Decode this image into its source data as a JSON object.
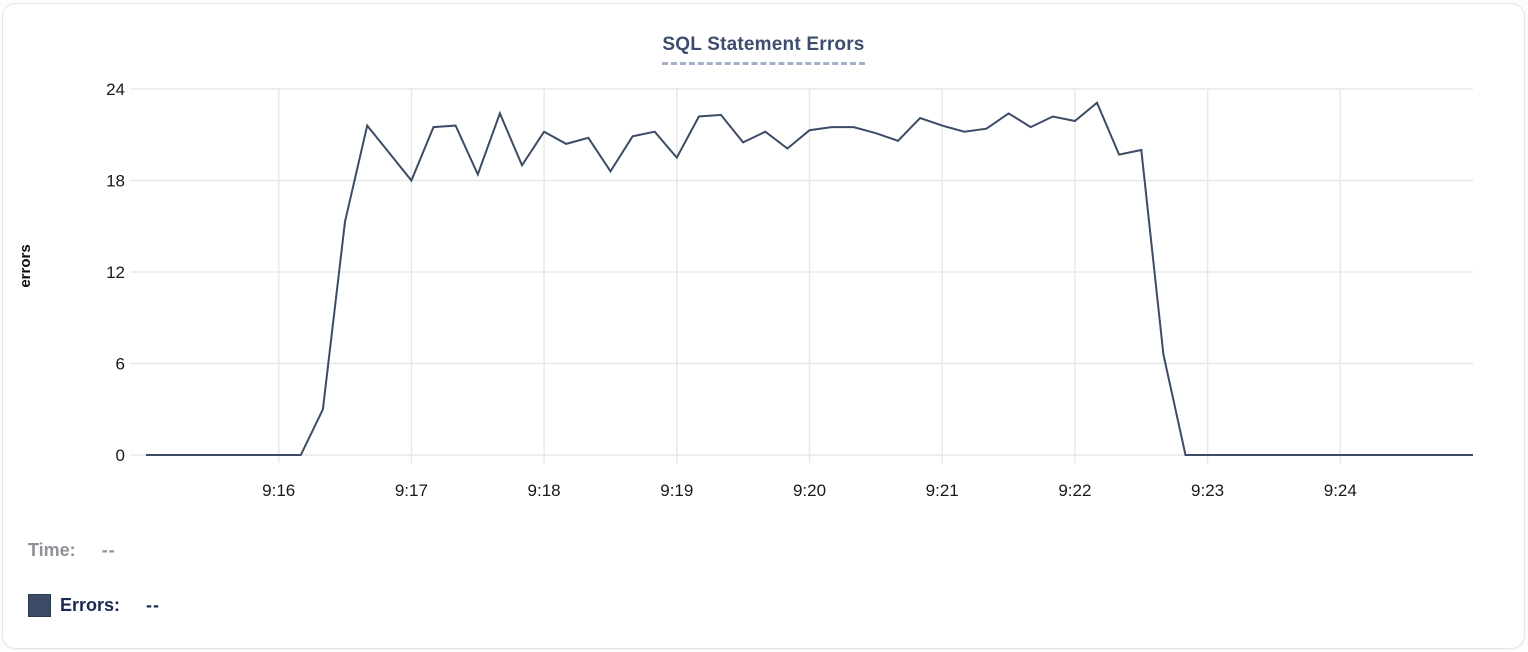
{
  "card": {
    "title": "SQL Statement Errors"
  },
  "legend": {
    "time_label": "Time:",
    "time_value": "--",
    "series_label": "Errors:",
    "series_value": "--",
    "swatch_color": "#3d4c66"
  },
  "colors": {
    "title": "#3e4d6d",
    "title_underline": "#a3b0c8",
    "grid": "#e8e8ea",
    "axis_text": "#17191d",
    "line": "#3d4c66",
    "time_label_gray": "#8e9096",
    "errors_label_navy": "#1b2951"
  },
  "chart_data": {
    "type": "line",
    "title": "SQL Statement Errors",
    "xlabel": "",
    "ylabel": "errors",
    "ylim": [
      0,
      24
    ],
    "yticks": [
      0,
      6,
      12,
      18,
      24
    ],
    "xtick_labels": [
      "9:16",
      "9:17",
      "9:18",
      "9:19",
      "9:20",
      "9:21",
      "9:22",
      "9:23",
      "9:24"
    ],
    "x_start": "9:15:00",
    "x_end": "9:25:00",
    "sample_interval_seconds": 10,
    "grid": true,
    "legend_position": "bottom-left",
    "series": [
      {
        "name": "Errors",
        "color": "#3d4c66",
        "times": [
          "9:15:00",
          "9:15:10",
          "9:15:20",
          "9:15:30",
          "9:15:40",
          "9:15:50",
          "9:16:00",
          "9:16:10",
          "9:16:20",
          "9:16:30",
          "9:16:40",
          "9:16:50",
          "9:17:00",
          "9:17:10",
          "9:17:20",
          "9:17:30",
          "9:17:40",
          "9:17:50",
          "9:18:00",
          "9:18:10",
          "9:18:20",
          "9:18:30",
          "9:18:40",
          "9:18:50",
          "9:19:00",
          "9:19:10",
          "9:19:20",
          "9:19:30",
          "9:19:40",
          "9:19:50",
          "9:20:00",
          "9:20:10",
          "9:20:20",
          "9:20:30",
          "9:20:40",
          "9:20:50",
          "9:21:00",
          "9:21:10",
          "9:21:20",
          "9:21:30",
          "9:21:40",
          "9:21:50",
          "9:22:00",
          "9:22:10",
          "9:22:20",
          "9:22:30",
          "9:22:40",
          "9:22:50",
          "9:23:00",
          "9:23:10",
          "9:23:20",
          "9:23:30",
          "9:23:40",
          "9:23:50",
          "9:24:00",
          "9:24:10",
          "9:24:20",
          "9:24:30",
          "9:24:40",
          "9:24:50",
          "9:25:00"
        ],
        "values": [
          0,
          0,
          0,
          0,
          0,
          0,
          0,
          0,
          3,
          15.3,
          21.6,
          19.8,
          18,
          21.5,
          21.6,
          18.4,
          22.4,
          19,
          21.2,
          20.4,
          20.8,
          18.6,
          20.9,
          21.2,
          19.5,
          22.2,
          22.3,
          20.5,
          21.2,
          20.1,
          21.3,
          21.5,
          21.5,
          21.1,
          20.6,
          22.1,
          21.6,
          21.2,
          21.4,
          22.4,
          21.5,
          22.2,
          21.9,
          23.1,
          19.7,
          20,
          6.6,
          0,
          0,
          0,
          0,
          0,
          0,
          0,
          0,
          0,
          0,
          0,
          0,
          0,
          0
        ]
      }
    ]
  }
}
